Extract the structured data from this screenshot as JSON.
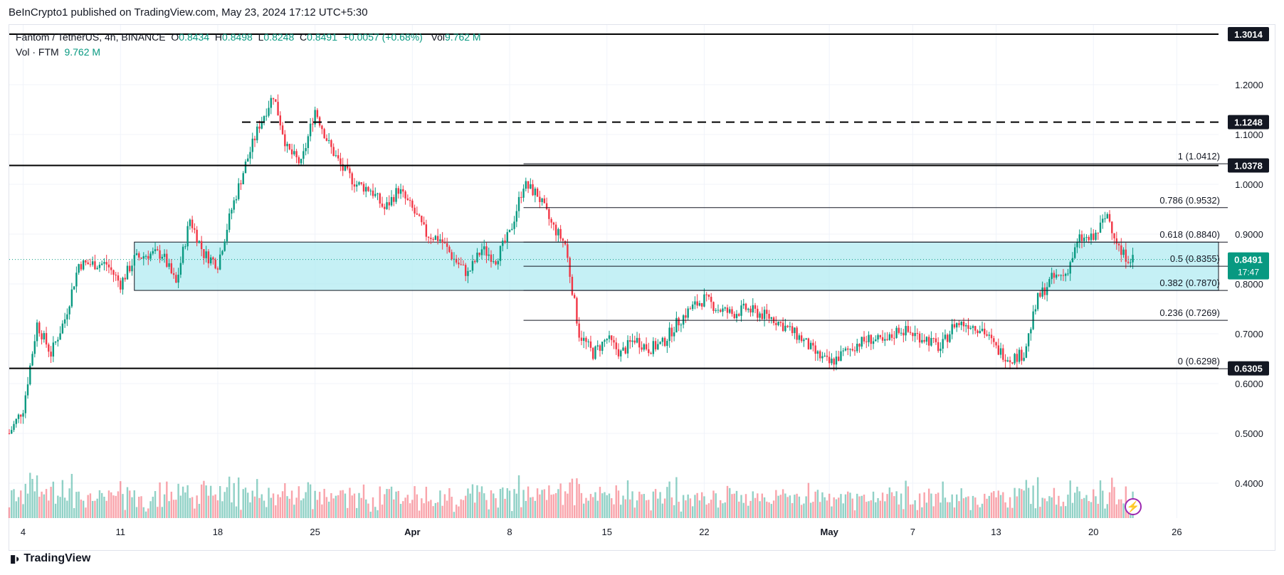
{
  "header": {
    "publisher": "BeInCrypto1 published on TradingView.com, May 23, 2024 17:12 UTC+5:30"
  },
  "legend": {
    "symbol": "Fantom / TetherUS, 4h, BINANCE",
    "o_label": "O",
    "o": "0.8434",
    "h_label": "H",
    "h": "0.8498",
    "l_label": "L",
    "l": "0.8248",
    "c_label": "C",
    "c": "0.8491",
    "change": "+0.0057 (+0.68%)",
    "vol_label": "Vol",
    "vol": "9.762 M",
    "vol_series": "Vol · FTM",
    "vol_value": "9.762 M"
  },
  "footer": {
    "brand": "TradingView",
    "logo_icon": "tradingview-logo-icon"
  },
  "colors": {
    "up": "#089981",
    "down": "#f23645",
    "zone": "#b2ebf2",
    "fib": "#131722",
    "current_price_bg": "#089981",
    "grid": "#f0f3fa"
  },
  "chart_data": {
    "type": "candlestick",
    "pair": "FTM/USDT",
    "timeframe": "4h",
    "yaxis_ticks": [
      "1.2000",
      "1.1000",
      "1.0000",
      "0.9000",
      "0.8000",
      "0.7000",
      "0.6000",
      "0.5000",
      "0.4000"
    ],
    "ylim": [
      0.33,
      1.32
    ],
    "xaxis_ticks": [
      {
        "label": "4",
        "date": "2024-03-04"
      },
      {
        "label": "11",
        "date": "2024-03-11"
      },
      {
        "label": "18",
        "date": "2024-03-18"
      },
      {
        "label": "25",
        "date": "2024-03-25"
      },
      {
        "label": "Apr",
        "date": "2024-04-01",
        "bold": true
      },
      {
        "label": "8",
        "date": "2024-04-08"
      },
      {
        "label": "15",
        "date": "2024-04-15"
      },
      {
        "label": "22",
        "date": "2024-04-22"
      },
      {
        "label": "May",
        "date": "2024-05-01",
        "bold": true
      },
      {
        "label": "7",
        "date": "2024-05-07"
      },
      {
        "label": "13",
        "date": "2024-05-13"
      },
      {
        "label": "20",
        "date": "2024-05-20"
      },
      {
        "label": "26",
        "date": "2024-05-26"
      }
    ],
    "xlim": [
      "2024-03-03",
      "2024-05-29"
    ],
    "price_path": [
      [
        "2024-03-03",
        0.5
      ],
      [
        "2024-03-04",
        0.55
      ],
      [
        "2024-03-05",
        0.72
      ],
      [
        "2024-03-06",
        0.66
      ],
      [
        "2024-03-07",
        0.73
      ],
      [
        "2024-03-08",
        0.84
      ],
      [
        "2024-03-10",
        0.84
      ],
      [
        "2024-03-11",
        0.8
      ],
      [
        "2024-03-12",
        0.85
      ],
      [
        "2024-03-13",
        0.86
      ],
      [
        "2024-03-14",
        0.86
      ],
      [
        "2024-03-15",
        0.8
      ],
      [
        "2024-03-16",
        0.93
      ],
      [
        "2024-03-17",
        0.86
      ],
      [
        "2024-03-18",
        0.84
      ],
      [
        "2024-03-19",
        0.95
      ],
      [
        "2024-03-20",
        1.04
      ],
      [
        "2024-03-21",
        1.12
      ],
      [
        "2024-03-22",
        1.18
      ],
      [
        "2024-03-23",
        1.07
      ],
      [
        "2024-03-24",
        1.04
      ],
      [
        "2024-03-25",
        1.15
      ],
      [
        "2024-03-26",
        1.08
      ],
      [
        "2024-03-27",
        1.03
      ],
      [
        "2024-03-28",
        1.0
      ],
      [
        "2024-03-29",
        0.99
      ],
      [
        "2024-03-30",
        0.95
      ],
      [
        "2024-03-31",
        0.99
      ],
      [
        "2024-04-01",
        0.95
      ],
      [
        "2024-04-02",
        0.9
      ],
      [
        "2024-04-03",
        0.89
      ],
      [
        "2024-04-04",
        0.85
      ],
      [
        "2024-04-05",
        0.82
      ],
      [
        "2024-04-06",
        0.87
      ],
      [
        "2024-04-07",
        0.85
      ],
      [
        "2024-04-08",
        0.9
      ],
      [
        "2024-04-09",
        1.0
      ],
      [
        "2024-04-10",
        0.98
      ],
      [
        "2024-04-11",
        0.92
      ],
      [
        "2024-04-12",
        0.88
      ],
      [
        "2024-04-13",
        0.7
      ],
      [
        "2024-04-14",
        0.66
      ],
      [
        "2024-04-15",
        0.69
      ],
      [
        "2024-04-16",
        0.66
      ],
      [
        "2024-04-17",
        0.69
      ],
      [
        "2024-04-18",
        0.67
      ],
      [
        "2024-04-19",
        0.68
      ],
      [
        "2024-04-20",
        0.72
      ],
      [
        "2024-04-21",
        0.75
      ],
      [
        "2024-04-22",
        0.77
      ],
      [
        "2024-04-23",
        0.75
      ],
      [
        "2024-04-24",
        0.74
      ],
      [
        "2024-04-25",
        0.75
      ],
      [
        "2024-04-26",
        0.74
      ],
      [
        "2024-04-27",
        0.73
      ],
      [
        "2024-04-28",
        0.71
      ],
      [
        "2024-04-29",
        0.69
      ],
      [
        "2024-04-30",
        0.66
      ],
      [
        "2024-05-01",
        0.64
      ],
      [
        "2024-05-02",
        0.66
      ],
      [
        "2024-05-03",
        0.68
      ],
      [
        "2024-05-04",
        0.69
      ],
      [
        "2024-05-05",
        0.68
      ],
      [
        "2024-05-06",
        0.71
      ],
      [
        "2024-05-07",
        0.7
      ],
      [
        "2024-05-08",
        0.69
      ],
      [
        "2024-05-09",
        0.67
      ],
      [
        "2024-05-10",
        0.72
      ],
      [
        "2024-05-11",
        0.72
      ],
      [
        "2024-05-12",
        0.71
      ],
      [
        "2024-05-13",
        0.67
      ],
      [
        "2024-05-14",
        0.65
      ],
      [
        "2024-05-15",
        0.66
      ],
      [
        "2024-05-16",
        0.77
      ],
      [
        "2024-05-17",
        0.81
      ],
      [
        "2024-05-18",
        0.82
      ],
      [
        "2024-05-19",
        0.89
      ],
      [
        "2024-05-20",
        0.89
      ],
      [
        "2024-05-21",
        0.94
      ],
      [
        "2024-05-22",
        0.86
      ],
      [
        "2024-05-23",
        0.849
      ]
    ],
    "horizontal_levels": [
      {
        "label": "1.3014",
        "value": 1.3014,
        "style": "solid"
      },
      {
        "label": "1.1248",
        "value": 1.1248,
        "style": "dashed"
      },
      {
        "label": "1.0378",
        "value": 1.0378,
        "style": "solid"
      },
      {
        "label": "0.6305",
        "value": 0.6305,
        "style": "solid"
      }
    ],
    "fib_levels": [
      {
        "label": "1 (1.0412)",
        "value": 1.0412
      },
      {
        "label": "0.786 (0.9532)",
        "value": 0.9532
      },
      {
        "label": "0.618 (0.8840)",
        "value": 0.884
      },
      {
        "label": "0.5 (0.8355)",
        "value": 0.8355
      },
      {
        "label": "0.382 (0.7870)",
        "value": 0.787
      },
      {
        "label": "0.236 (0.7269)",
        "value": 0.7269
      },
      {
        "label": "0 (0.6298)",
        "value": 0.6298
      }
    ],
    "fib_start_date": "2024-04-09",
    "zone": {
      "from": 0.787,
      "to": 0.884,
      "start_date": "2024-03-12"
    },
    "current_price": {
      "label": "0.8491",
      "value": 0.8491,
      "countdown": "17:47"
    }
  }
}
